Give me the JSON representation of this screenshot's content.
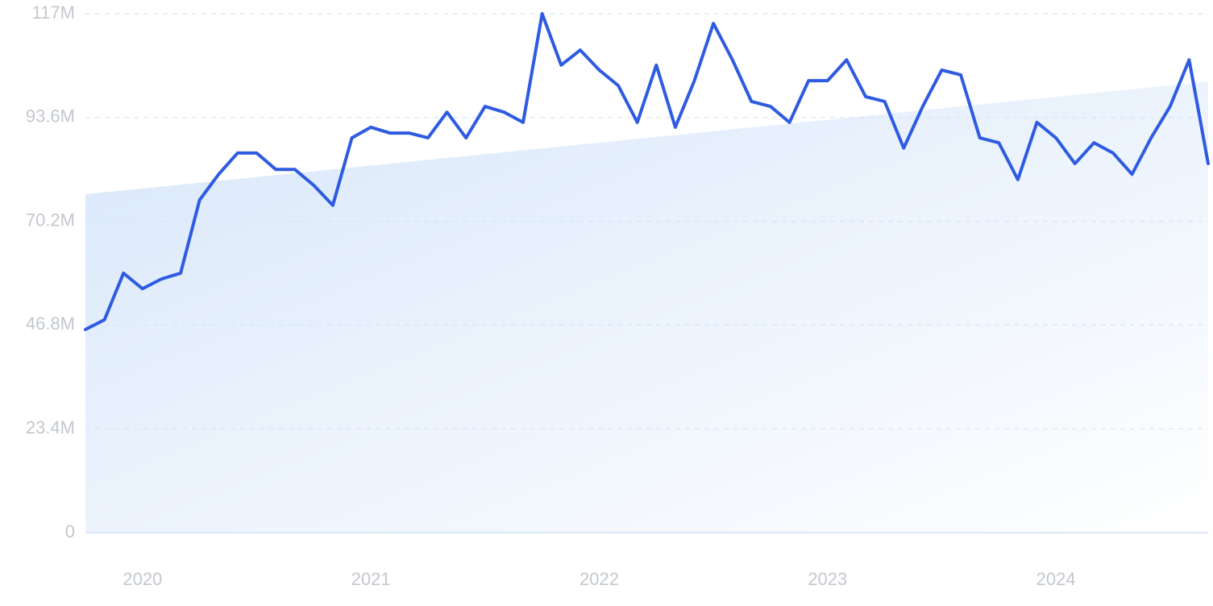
{
  "chart_data": {
    "type": "line",
    "categories": [
      null,
      null,
      null,
      "2020",
      null,
      null,
      null,
      null,
      null,
      null,
      null,
      null,
      null,
      null,
      null,
      "2021",
      null,
      null,
      null,
      null,
      null,
      null,
      null,
      null,
      null,
      null,
      null,
      "2022",
      null,
      null,
      null,
      null,
      null,
      null,
      null,
      null,
      null,
      null,
      null,
      "2023",
      null,
      null,
      null,
      null,
      null,
      null,
      null,
      null,
      null,
      null,
      null,
      "2024",
      null,
      null,
      null,
      null,
      null,
      null,
      null,
      null
    ],
    "series": [
      {
        "color": "#2f5be0",
        "values": [
          45800000,
          48000000,
          58500000,
          55000000,
          57200000,
          58500000,
          75000000,
          80800000,
          85600000,
          85600000,
          81900000,
          81900000,
          78300000,
          73800000,
          89000000,
          91400000,
          90100000,
          90100000,
          89000000,
          94800000,
          89000000,
          96100000,
          94800000,
          92500000,
          117000000,
          105400000,
          108800000,
          104300000,
          100800000,
          92500000,
          105400000,
          91400000,
          101900000,
          114800000,
          106600000,
          97200000,
          96100000,
          92500000,
          101900000,
          101900000,
          106600000,
          98300000,
          97200000,
          86700000,
          96100000,
          104300000,
          103200000,
          89000000,
          87900000,
          79600000,
          92500000,
          89000000,
          83200000,
          87900000,
          85600000,
          80800000,
          89000000,
          96100000,
          106600000,
          83200000
        ]
      }
    ],
    "trend": [
      76300000,
      101700000
    ],
    "ylim": [
      0,
      117000000
    ],
    "yticks": [
      {
        "value": 0,
        "label": "0"
      },
      {
        "value": 23400000,
        "label": "23.4M"
      },
      {
        "value": 46800000,
        "label": "46.8M"
      },
      {
        "value": 70200000,
        "label": "70.2M"
      },
      {
        "value": 93600000,
        "label": "93.6M"
      },
      {
        "value": 117000000,
        "label": "117M"
      }
    ],
    "grid": true
  }
}
